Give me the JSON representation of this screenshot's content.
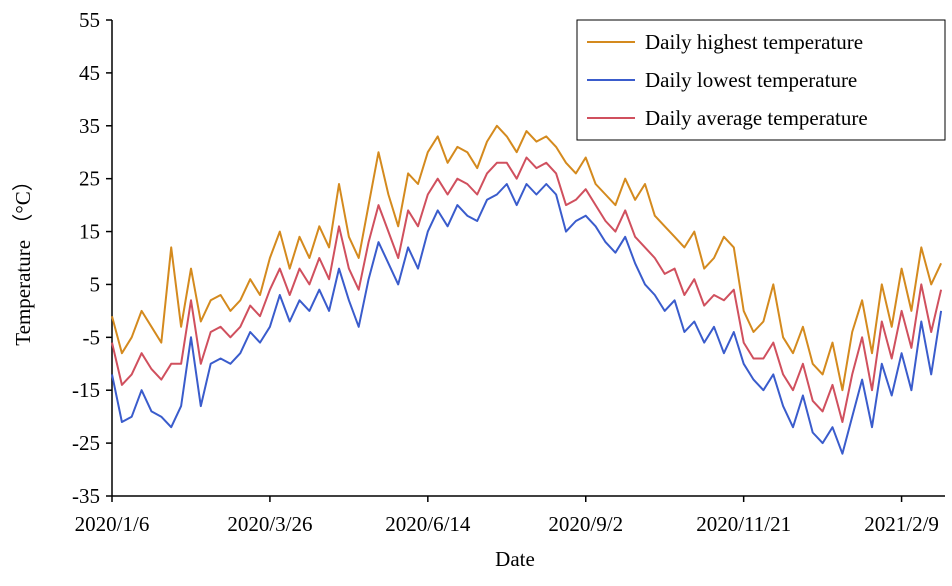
{
  "chart_data": {
    "type": "line",
    "x_label": "Date",
    "y_label": "Temperature （°C）",
    "x": [
      "2020/1/6",
      "2020/1/11",
      "2020/1/16",
      "2020/1/21",
      "2020/1/26",
      "2020/1/31",
      "2020/2/5",
      "2020/2/10",
      "2020/2/15",
      "2020/2/20",
      "2020/2/25",
      "2020/3/1",
      "2020/3/6",
      "2020/3/11",
      "2020/3/16",
      "2020/3/21",
      "2020/3/26",
      "2020/3/31",
      "2020/4/5",
      "2020/4/10",
      "2020/4/15",
      "2020/4/20",
      "2020/4/25",
      "2020/4/30",
      "2020/5/5",
      "2020/5/10",
      "2020/5/15",
      "2020/5/20",
      "2020/5/25",
      "2020/5/30",
      "2020/6/4",
      "2020/6/9",
      "2020/6/14",
      "2020/6/19",
      "2020/6/24",
      "2020/6/29",
      "2020/7/4",
      "2020/7/9",
      "2020/7/14",
      "2020/7/19",
      "2020/7/24",
      "2020/7/29",
      "2020/8/3",
      "2020/8/8",
      "2020/8/13",
      "2020/8/18",
      "2020/8/23",
      "2020/8/28",
      "2020/9/2",
      "2020/9/7",
      "2020/9/12",
      "2020/9/17",
      "2020/9/22",
      "2020/9/27",
      "2020/10/2",
      "2020/10/7",
      "2020/10/12",
      "2020/10/17",
      "2020/10/22",
      "2020/10/27",
      "2020/11/1",
      "2020/11/6",
      "2020/11/11",
      "2020/11/16",
      "2020/11/21",
      "2020/11/26",
      "2020/12/1",
      "2020/12/6",
      "2020/12/11",
      "2020/12/16",
      "2020/12/21",
      "2020/12/26",
      "2020/12/31",
      "2021/1/5",
      "2021/1/10",
      "2021/1/15",
      "2021/1/20",
      "2021/1/25",
      "2021/1/30",
      "2021/2/4",
      "2021/2/9",
      "2021/2/14",
      "2021/2/19",
      "2021/2/24",
      "2021/3/1"
    ],
    "series": [
      {
        "name": "Daily highest temperature",
        "color": "#d48a1e",
        "values": [
          -1,
          -8,
          -5,
          0,
          -3,
          -6,
          12,
          -3,
          8,
          -2,
          2,
          3,
          0,
          2,
          6,
          3,
          10,
          15,
          8,
          14,
          10,
          16,
          12,
          24,
          14,
          10,
          20,
          30,
          22,
          16,
          26,
          24,
          30,
          33,
          28,
          31,
          30,
          27,
          32,
          35,
          33,
          30,
          34,
          32,
          33,
          31,
          28,
          26,
          29,
          24,
          22,
          20,
          25,
          21,
          24,
          18,
          16,
          14,
          12,
          15,
          8,
          10,
          14,
          12,
          0,
          -4,
          -2,
          5,
          -5,
          -8,
          -3,
          -10,
          -12,
          -6,
          -15,
          -4,
          2,
          -8,
          5,
          -3,
          8,
          0,
          12,
          5,
          9
        ]
      },
      {
        "name": "Daily lowest temperature",
        "color": "#3a5ccc",
        "values": [
          -12,
          -21,
          -20,
          -15,
          -19,
          -20,
          -22,
          -18,
          -5,
          -18,
          -10,
          -9,
          -10,
          -8,
          -4,
          -6,
          -3,
          3,
          -2,
          2,
          0,
          4,
          0,
          8,
          2,
          -3,
          6,
          13,
          9,
          5,
          12,
          8,
          15,
          19,
          16,
          20,
          18,
          17,
          21,
          22,
          24,
          20,
          24,
          22,
          24,
          22,
          15,
          17,
          18,
          16,
          13,
          11,
          14,
          9,
          5,
          3,
          0,
          2,
          -4,
          -2,
          -6,
          -3,
          -8,
          -4,
          -10,
          -13,
          -15,
          -12,
          -18,
          -22,
          -16,
          -23,
          -25,
          -22,
          -27,
          -20,
          -13,
          -22,
          -10,
          -16,
          -8,
          -15,
          -2,
          -12,
          0
        ]
      },
      {
        "name": "Daily average temperature",
        "color": "#d0505e",
        "values": [
          -6,
          -14,
          -12,
          -8,
          -11,
          -13,
          -10,
          -10,
          2,
          -10,
          -4,
          -3,
          -5,
          -3,
          1,
          -1,
          4,
          8,
          3,
          8,
          5,
          10,
          6,
          16,
          8,
          4,
          13,
          20,
          15,
          10,
          19,
          16,
          22,
          25,
          22,
          25,
          24,
          22,
          26,
          28,
          28,
          25,
          29,
          27,
          28,
          26,
          20,
          21,
          23,
          20,
          17,
          15,
          19,
          14,
          12,
          10,
          7,
          8,
          3,
          6,
          1,
          3,
          2,
          4,
          -6,
          -9,
          -9,
          -6,
          -12,
          -15,
          -10,
          -17,
          -19,
          -14,
          -21,
          -12,
          -5,
          -15,
          -2,
          -9,
          0,
          -7,
          5,
          -4,
          4
        ]
      }
    ],
    "xlim": [
      "2020/1/6",
      "2021/3/3"
    ],
    "xticks": [
      "2020/1/6",
      "2020/3/26",
      "2020/6/14",
      "2020/9/2",
      "2020/11/21",
      "2021/2/9"
    ],
    "ylim": [
      -35,
      55
    ],
    "yticks": [
      -35,
      -25,
      -15,
      -5,
      5,
      15,
      25,
      35,
      45,
      55
    ],
    "grid": false,
    "legend": "upper right"
  }
}
